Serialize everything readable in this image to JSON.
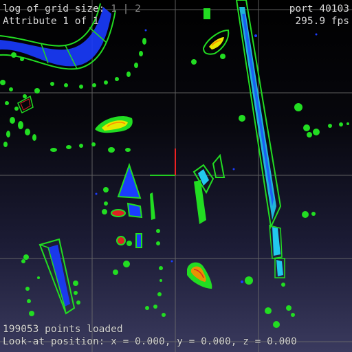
{
  "hud": {
    "grid_label": "log of grid size:",
    "grid_value_1": "1",
    "grid_sep": "|",
    "grid_value_2": "2",
    "attribute": "Attribute 1 of 1",
    "port": "port 40103",
    "fps": "295.9 fps",
    "points_loaded": "199053 points loaded",
    "look_at": "Look-at position: x = 0.000, y = 0.000, z = 0.000"
  },
  "colors": {
    "grid": "#6e6e6e",
    "green": "#22dd22",
    "blue": "#1a3cff",
    "cyan": "#22c8ee",
    "red": "#dd2222",
    "orange": "#ff8800",
    "yellow": "#e8e800",
    "axis_x": "#22cc22",
    "axis_y": "#ee2222"
  }
}
